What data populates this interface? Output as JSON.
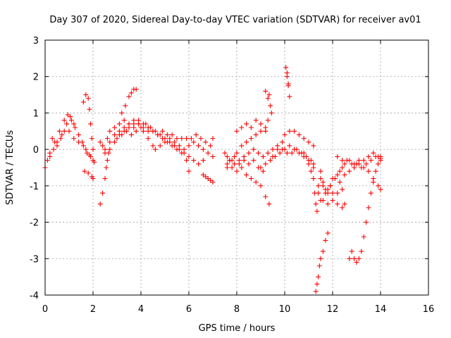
{
  "chart_data": {
    "type": "scatter",
    "title": "Day 307 of 2020, Sidereal Day-to-day VTEC variation (SDTVAR) for receiver av01",
    "xlabel": "GPS time / hours",
    "ylabel": "SDTVAR / TECUs",
    "xlim": [
      0,
      16
    ],
    "ylim": [
      -4,
      3
    ],
    "xticks": [
      "0",
      "2",
      "4",
      "6",
      "8",
      "10",
      "12",
      "14",
      "16"
    ],
    "yticks": [
      "-4",
      "-3",
      "-2",
      "-1",
      "0",
      "1",
      "2",
      "3"
    ],
    "grid": true,
    "marker": "+",
    "color": "#ff0000",
    "series": [
      {
        "points": [
          [
            0.0,
            -0.5
          ],
          [
            0.2,
            -0.1
          ],
          [
            0.4,
            0.2
          ],
          [
            0.6,
            0.5
          ],
          [
            0.8,
            0.8
          ],
          [
            0.95,
            0.95
          ],
          [
            1.1,
            0.8
          ],
          [
            1.25,
            0.6
          ],
          [
            1.4,
            0.4
          ],
          [
            1.55,
            0.2
          ],
          [
            1.7,
            0.0
          ],
          [
            1.85,
            -0.15
          ],
          [
            2.0,
            -0.3
          ],
          [
            0.1,
            -0.3
          ],
          [
            0.3,
            0.3
          ],
          [
            0.5,
            0.2
          ],
          [
            0.7,
            0.4
          ],
          [
            0.9,
            0.7
          ],
          [
            1.05,
            0.9
          ],
          [
            1.2,
            0.7
          ],
          [
            0.2,
            -0.2
          ],
          [
            0.35,
            0.0
          ],
          [
            0.5,
            0.1
          ],
          [
            0.65,
            0.3
          ],
          [
            0.8,
            0.5
          ],
          [
            1.0,
            0.5
          ],
          [
            1.2,
            0.3
          ],
          [
            1.4,
            0.2
          ],
          [
            1.6,
            0.1
          ],
          [
            1.75,
            -0.1
          ],
          [
            1.9,
            -0.2
          ],
          [
            2.05,
            -0.35
          ],
          [
            1.6,
            1.3
          ],
          [
            1.7,
            1.5
          ],
          [
            1.8,
            1.4
          ],
          [
            1.85,
            1.1
          ],
          [
            1.9,
            0.7
          ],
          [
            1.95,
            0.3
          ],
          [
            2.0,
            0.0
          ],
          [
            1.65,
            -0.6
          ],
          [
            1.8,
            -0.65
          ],
          [
            1.95,
            -0.75
          ],
          [
            2.0,
            -0.8
          ],
          [
            2.3,
            -1.5
          ],
          [
            2.4,
            -1.2
          ],
          [
            2.5,
            -0.8
          ],
          [
            2.55,
            -0.5
          ],
          [
            2.6,
            -0.3
          ],
          [
            2.65,
            -0.1
          ],
          [
            2.7,
            0.0
          ],
          [
            2.9,
            0.2
          ],
          [
            3.1,
            0.4
          ],
          [
            3.3,
            0.5
          ],
          [
            3.5,
            0.6
          ],
          [
            3.7,
            0.7
          ],
          [
            3.9,
            0.7
          ],
          [
            4.1,
            0.6
          ],
          [
            4.3,
            0.5
          ],
          [
            4.5,
            0.5
          ],
          [
            4.7,
            0.4
          ],
          [
            4.9,
            0.3
          ],
          [
            5.1,
            0.2
          ],
          [
            5.3,
            0.1
          ],
          [
            5.5,
            0.0
          ],
          [
            5.7,
            -0.1
          ],
          [
            5.9,
            -0.3
          ],
          [
            6.0,
            -0.6
          ],
          [
            2.3,
            0.2
          ],
          [
            2.4,
            0.1
          ],
          [
            2.5,
            -0.1
          ],
          [
            2.6,
            0.3
          ],
          [
            2.7,
            0.5
          ],
          [
            2.9,
            0.6
          ],
          [
            3.1,
            0.7
          ],
          [
            3.3,
            0.8
          ],
          [
            3.5,
            0.7
          ],
          [
            3.7,
            0.6
          ],
          [
            3.9,
            0.8
          ],
          [
            4.1,
            0.7
          ],
          [
            4.3,
            0.6
          ],
          [
            4.5,
            0.5
          ],
          [
            4.7,
            0.4
          ],
          [
            4.9,
            0.5
          ],
          [
            5.1,
            0.4
          ],
          [
            5.3,
            0.4
          ],
          [
            5.5,
            0.3
          ],
          [
            5.7,
            0.3
          ],
          [
            5.9,
            0.3
          ],
          [
            6.1,
            0.3
          ],
          [
            6.3,
            0.4
          ],
          [
            6.5,
            0.3
          ],
          [
            6.7,
            0.2
          ],
          [
            6.9,
            0.1
          ],
          [
            7.0,
            0.3
          ],
          [
            2.5,
            0.0
          ],
          [
            2.7,
            0.2
          ],
          [
            2.9,
            0.4
          ],
          [
            3.1,
            0.5
          ],
          [
            3.3,
            0.6
          ],
          [
            3.5,
            0.7
          ],
          [
            3.7,
            0.8
          ],
          [
            3.9,
            0.7
          ],
          [
            4.1,
            0.5
          ],
          [
            4.3,
            0.3
          ],
          [
            4.5,
            0.1
          ],
          [
            4.6,
            0.0
          ],
          [
            4.8,
            0.1
          ],
          [
            5.0,
            0.2
          ],
          [
            5.2,
            0.3
          ],
          [
            5.4,
            0.2
          ],
          [
            5.6,
            0.1
          ],
          [
            5.8,
            0.0
          ],
          [
            6.0,
            0.1
          ],
          [
            6.2,
            0.2
          ],
          [
            6.4,
            0.1
          ],
          [
            6.6,
            0.0
          ],
          [
            6.8,
            -0.1
          ],
          [
            7.0,
            -0.2
          ],
          [
            3.2,
            1.0
          ],
          [
            3.35,
            1.2
          ],
          [
            3.5,
            1.45
          ],
          [
            3.6,
            1.55
          ],
          [
            3.7,
            1.65
          ],
          [
            3.8,
            1.65
          ],
          [
            3.0,
            0.3
          ],
          [
            3.2,
            0.4
          ],
          [
            3.4,
            0.5
          ],
          [
            3.6,
            0.4
          ],
          [
            3.8,
            0.5
          ],
          [
            4.0,
            0.6
          ],
          [
            4.2,
            0.7
          ],
          [
            4.4,
            0.6
          ],
          [
            4.6,
            0.5
          ],
          [
            4.8,
            0.4
          ],
          [
            5.0,
            0.3
          ],
          [
            5.2,
            0.2
          ],
          [
            5.4,
            0.1
          ],
          [
            5.6,
            0.0
          ],
          [
            5.8,
            -0.1
          ],
          [
            6.0,
            -0.2
          ],
          [
            6.2,
            -0.3
          ],
          [
            6.4,
            -0.4
          ],
          [
            6.6,
            -0.3
          ],
          [
            6.6,
            -0.7
          ],
          [
            6.8,
            -0.8
          ],
          [
            7.0,
            -0.9
          ],
          [
            6.7,
            -0.75
          ],
          [
            6.9,
            -0.85
          ],
          [
            7.5,
            -0.1
          ],
          [
            7.6,
            -0.2
          ],
          [
            7.7,
            -0.3
          ],
          [
            7.9,
            -0.2
          ],
          [
            8.1,
            -0.4
          ],
          [
            8.3,
            -0.3
          ],
          [
            8.5,
            -0.4
          ],
          [
            8.7,
            -0.3
          ],
          [
            8.9,
            -0.5
          ],
          [
            9.1,
            -0.6
          ],
          [
            7.6,
            -0.4
          ],
          [
            7.8,
            -0.5
          ],
          [
            8.0,
            -0.6
          ],
          [
            8.2,
            -0.5
          ],
          [
            8.4,
            -0.7
          ],
          [
            8.6,
            -0.8
          ],
          [
            8.8,
            -0.9
          ],
          [
            9.0,
            -1.0
          ],
          [
            9.2,
            -1.3
          ],
          [
            9.35,
            -1.5
          ],
          [
            7.6,
            -0.5
          ],
          [
            7.8,
            -0.3
          ],
          [
            8.0,
            -0.1
          ],
          [
            8.2,
            0.1
          ],
          [
            8.4,
            0.2
          ],
          [
            8.6,
            0.3
          ],
          [
            8.8,
            0.4
          ],
          [
            9.0,
            0.5
          ],
          [
            9.2,
            0.6
          ],
          [
            9.3,
            0.8
          ],
          [
            8.0,
            0.5
          ],
          [
            8.2,
            0.6
          ],
          [
            8.4,
            0.7
          ],
          [
            8.6,
            0.6
          ],
          [
            8.8,
            0.8
          ],
          [
            9.0,
            0.7
          ],
          [
            9.2,
            0.5
          ],
          [
            9.2,
            1.6
          ],
          [
            9.3,
            1.4
          ],
          [
            9.4,
            1.2
          ],
          [
            9.45,
            1.0
          ],
          [
            9.35,
            1.5
          ],
          [
            10.05,
            2.25
          ],
          [
            10.1,
            2.0
          ],
          [
            10.15,
            1.75
          ],
          [
            10.2,
            1.45
          ],
          [
            10.1,
            2.1
          ],
          [
            10.15,
            1.8
          ],
          [
            7.7,
            -0.3
          ],
          [
            7.9,
            -0.4
          ],
          [
            8.1,
            -0.3
          ],
          [
            8.3,
            -0.2
          ],
          [
            8.5,
            -0.1
          ],
          [
            8.7,
            0.0
          ],
          [
            8.9,
            -0.1
          ],
          [
            9.1,
            -0.2
          ],
          [
            9.3,
            -0.1
          ],
          [
            9.5,
            0.0
          ],
          [
            9.7,
            0.1
          ],
          [
            9.9,
            0.0
          ],
          [
            10.1,
            -0.1
          ],
          [
            10.3,
            -0.1
          ],
          [
            10.5,
            0.0
          ],
          [
            10.7,
            -0.1
          ],
          [
            10.9,
            -0.2
          ],
          [
            11.1,
            -0.3
          ],
          [
            11.2,
            -0.4
          ],
          [
            9.0,
            -0.5
          ],
          [
            9.2,
            -0.4
          ],
          [
            9.4,
            -0.3
          ],
          [
            9.6,
            -0.2
          ],
          [
            9.8,
            -0.1
          ],
          [
            10.0,
            0.0
          ],
          [
            10.2,
            0.1
          ],
          [
            10.4,
            0.0
          ],
          [
            10.6,
            -0.1
          ],
          [
            10.8,
            -0.2
          ],
          [
            11.0,
            -0.3
          ],
          [
            11.2,
            -0.5
          ],
          [
            9.5,
            -0.2
          ],
          [
            9.7,
            0.0
          ],
          [
            9.9,
            0.2
          ],
          [
            10.0,
            0.4
          ],
          [
            10.2,
            0.5
          ],
          [
            10.4,
            0.5
          ],
          [
            10.6,
            0.4
          ],
          [
            10.8,
            0.3
          ],
          [
            11.0,
            0.2
          ],
          [
            11.2,
            0.1
          ],
          [
            10.8,
            -0.1
          ],
          [
            11.0,
            -0.4
          ],
          [
            11.1,
            -0.6
          ],
          [
            11.2,
            -0.8
          ],
          [
            11.25,
            -1.2
          ],
          [
            11.3,
            -1.5
          ],
          [
            11.35,
            -1.7
          ],
          [
            11.3,
            -3.9
          ],
          [
            11.35,
            -3.7
          ],
          [
            11.4,
            -3.5
          ],
          [
            11.45,
            -3.2
          ],
          [
            11.5,
            -3.0
          ],
          [
            11.6,
            -2.8
          ],
          [
            11.7,
            -2.5
          ],
          [
            11.8,
            -2.3
          ],
          [
            11.4,
            -1.2
          ],
          [
            11.6,
            -1.4
          ],
          [
            11.8,
            -1.5
          ],
          [
            12.0,
            -1.4
          ],
          [
            12.2,
            -1.5
          ],
          [
            12.4,
            -1.6
          ],
          [
            12.5,
            -1.5
          ],
          [
            11.4,
            -1.0
          ],
          [
            11.5,
            -0.8
          ],
          [
            11.6,
            -1.0
          ],
          [
            11.8,
            -1.1
          ],
          [
            12.0,
            -1.2
          ],
          [
            12.2,
            -1.2
          ],
          [
            12.4,
            -1.1
          ],
          [
            11.5,
            -0.6
          ],
          [
            11.6,
            -0.9
          ],
          [
            11.7,
            -1.1
          ],
          [
            11.8,
            -1.2
          ],
          [
            11.9,
            -1.0
          ],
          [
            12.0,
            -0.8
          ],
          [
            12.2,
            -0.7
          ],
          [
            12.4,
            -0.5
          ],
          [
            11.5,
            -1.4
          ],
          [
            11.7,
            -1.2
          ],
          [
            11.9,
            -1.0
          ],
          [
            12.1,
            -0.8
          ],
          [
            12.3,
            -0.6
          ],
          [
            12.5,
            -0.4
          ],
          [
            12.7,
            -0.3
          ],
          [
            12.9,
            -0.5
          ],
          [
            13.1,
            -0.4
          ],
          [
            13.3,
            -0.5
          ],
          [
            13.5,
            -0.6
          ],
          [
            13.7,
            -0.8
          ],
          [
            13.9,
            -1.0
          ],
          [
            14.0,
            -1.1
          ],
          [
            12.2,
            -0.2
          ],
          [
            12.4,
            -0.3
          ],
          [
            12.6,
            -0.3
          ],
          [
            12.8,
            -0.4
          ],
          [
            13.0,
            -0.4
          ],
          [
            13.2,
            -0.5
          ],
          [
            13.4,
            -0.4
          ],
          [
            13.6,
            -0.3
          ],
          [
            13.8,
            -0.2
          ],
          [
            14.0,
            -0.2
          ],
          [
            12.3,
            -0.9
          ],
          [
            12.5,
            -0.7
          ],
          [
            12.7,
            -0.6
          ],
          [
            12.9,
            -0.4
          ],
          [
            13.1,
            -0.3
          ],
          [
            13.3,
            -0.3
          ],
          [
            13.5,
            -0.2
          ],
          [
            13.7,
            -0.1
          ],
          [
            13.9,
            -0.2
          ],
          [
            14.0,
            -0.3
          ],
          [
            12.7,
            -3.0
          ],
          [
            12.8,
            -2.8
          ],
          [
            12.9,
            -3.0
          ],
          [
            13.0,
            -3.1
          ],
          [
            13.1,
            -3.0
          ],
          [
            13.2,
            -2.8
          ],
          [
            13.3,
            -2.4
          ],
          [
            13.4,
            -2.0
          ],
          [
            13.5,
            -1.6
          ],
          [
            13.6,
            -1.2
          ],
          [
            13.7,
            -0.9
          ],
          [
            13.8,
            -0.6
          ],
          [
            13.9,
            -0.4
          ],
          [
            14.0,
            -0.25
          ]
        ]
      }
    ]
  }
}
